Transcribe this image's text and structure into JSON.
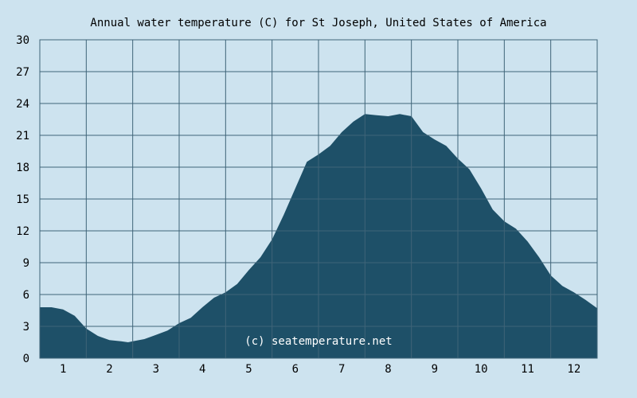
{
  "chart_data": {
    "type": "area",
    "title": "Annual water temperature (C) for St Joseph, United States of America",
    "watermark": "(c) seatemperature.net",
    "xlabel": "",
    "ylabel": "",
    "xlim": [
      0.5,
      12.5
    ],
    "ylim": [
      0,
      30
    ],
    "yticks": [
      "0",
      "3",
      "6",
      "9",
      "12",
      "15",
      "18",
      "21",
      "24",
      "27",
      "30"
    ],
    "xticks": [
      "1",
      "2",
      "3",
      "4",
      "5",
      "6",
      "7",
      "8",
      "9",
      "10",
      "11",
      "12"
    ],
    "grid": true,
    "colors": {
      "background": "#cde3ef",
      "fill": "#1e5068",
      "grid": "#3f6478",
      "text": "#000000",
      "watermark": "#ffffff"
    },
    "x": [
      0.5,
      0.75,
      1.0,
      1.25,
      1.5,
      1.75,
      2.0,
      2.25,
      2.4,
      2.5,
      2.75,
      3.0,
      3.25,
      3.5,
      3.75,
      4.0,
      4.25,
      4.5,
      4.75,
      5.0,
      5.25,
      5.5,
      5.75,
      6.0,
      6.25,
      6.5,
      6.75,
      7.0,
      7.25,
      7.5,
      7.75,
      8.0,
      8.25,
      8.5,
      8.75,
      9.0,
      9.25,
      9.5,
      9.75,
      10.0,
      10.25,
      10.5,
      10.75,
      11.0,
      11.25,
      11.5,
      11.75,
      12.0,
      12.25,
      12.5
    ],
    "values": [
      4.8,
      4.8,
      4.6,
      4.0,
      2.8,
      2.1,
      1.7,
      1.6,
      1.5,
      1.6,
      1.8,
      2.2,
      2.6,
      3.3,
      3.8,
      4.8,
      5.7,
      6.2,
      7.0,
      8.3,
      9.5,
      11.2,
      13.5,
      16.0,
      18.5,
      19.2,
      20.0,
      21.3,
      22.3,
      23.0,
      22.9,
      22.8,
      23.0,
      22.8,
      21.3,
      20.6,
      20.0,
      18.8,
      17.8,
      16.0,
      14.0,
      12.9,
      12.2,
      11.0,
      9.5,
      7.8,
      6.8,
      6.2,
      5.5,
      4.7
    ]
  }
}
